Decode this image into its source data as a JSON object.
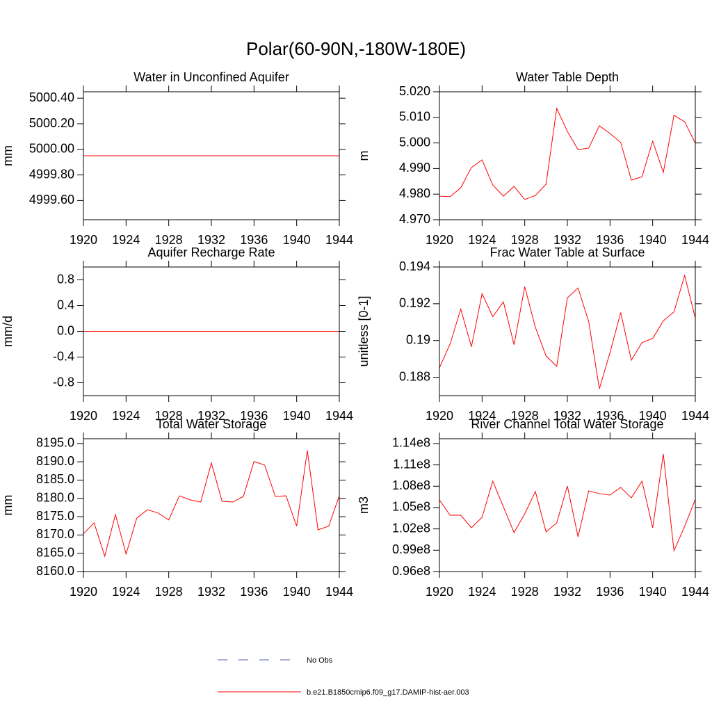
{
  "title": "Polar(60-90N,-180W-180E)",
  "legend": [
    {
      "label": "No Obs",
      "color": "#5060b0",
      "dashed": true
    },
    {
      "label": "b.e21.B1850cmip6.f09_g17.DAMIP-hist-aer.003",
      "color": "#ff0000",
      "dashed": false
    }
  ],
  "chart_data": [
    {
      "type": "line",
      "title": "Water in Unconfined Aquifer",
      "ylabel": "mm",
      "color": "#ff0000",
      "x": [
        1920,
        1921,
        1922,
        1923,
        1924,
        1925,
        1926,
        1927,
        1928,
        1929,
        1930,
        1931,
        1932,
        1933,
        1934,
        1935,
        1936,
        1937,
        1938,
        1939,
        1940,
        1941,
        1942,
        1943,
        1944
      ],
      "values": [
        4999.95,
        4999.95,
        4999.95,
        4999.95,
        4999.95,
        4999.95,
        4999.95,
        4999.95,
        4999.95,
        4999.95,
        4999.95,
        4999.95,
        4999.95,
        4999.95,
        4999.95,
        4999.95,
        4999.95,
        4999.95,
        4999.95,
        4999.95,
        4999.95,
        4999.95,
        4999.95,
        4999.95,
        4999.95
      ],
      "xlim": [
        1920,
        1944
      ],
      "xticks": [
        1920,
        1924,
        1928,
        1932,
        1936,
        1940,
        1944
      ],
      "ylim": [
        4999.45,
        5000.45
      ],
      "yticks": [
        {
          "value": 4999.6,
          "label": "4999.60"
        },
        {
          "value": 4999.8,
          "label": "4999.80"
        },
        {
          "value": 5000.0,
          "label": "5000.00"
        },
        {
          "value": 5000.2,
          "label": "5000.20"
        },
        {
          "value": 5000.4,
          "label": "5000.40"
        }
      ]
    },
    {
      "type": "line",
      "title": "Water Table Depth",
      "ylabel": "m",
      "color": "#ff0000",
      "x": [
        1920,
        1921,
        1922,
        1923,
        1924,
        1925,
        1926,
        1927,
        1928,
        1929,
        1930,
        1931,
        1932,
        1933,
        1934,
        1935,
        1936,
        1937,
        1938,
        1939,
        1940,
        1941,
        1942,
        1943,
        1944
      ],
      "values": [
        4.9792,
        4.979,
        4.9825,
        4.9904,
        4.9934,
        4.9836,
        4.9792,
        4.983,
        4.9779,
        4.9795,
        4.9839,
        5.0135,
        5.0045,
        4.9974,
        4.998,
        5.0067,
        5.0037,
        5.0002,
        4.9855,
        4.9868,
        5.0007,
        4.9885,
        5.0108,
        5.0083,
        4.9999
      ],
      "xlim": [
        1920,
        1944
      ],
      "xticks": [
        1920,
        1924,
        1928,
        1932,
        1936,
        1940,
        1944
      ],
      "ylim": [
        4.97,
        5.02
      ],
      "yticks": [
        {
          "value": 4.97,
          "label": "4.970"
        },
        {
          "value": 4.98,
          "label": "4.980"
        },
        {
          "value": 4.99,
          "label": "4.990"
        },
        {
          "value": 5.0,
          "label": "5.000"
        },
        {
          "value": 5.01,
          "label": "5.010"
        },
        {
          "value": 5.02,
          "label": "5.020"
        }
      ]
    },
    {
      "type": "line",
      "title": "Aquifer Recharge Rate",
      "ylabel": "mm/d",
      "color": "#ff0000",
      "x": [
        1920,
        1921,
        1922,
        1923,
        1924,
        1925,
        1926,
        1927,
        1928,
        1929,
        1930,
        1931,
        1932,
        1933,
        1934,
        1935,
        1936,
        1937,
        1938,
        1939,
        1940,
        1941,
        1942,
        1943,
        1944
      ],
      "values": [
        0,
        0,
        0,
        0,
        0,
        0,
        0,
        0,
        0,
        0,
        0,
        0,
        0,
        0,
        0,
        0,
        0,
        0,
        0,
        0,
        0,
        0,
        0,
        0,
        0
      ],
      "xlim": [
        1920,
        1944
      ],
      "xticks": [
        1920,
        1924,
        1928,
        1932,
        1936,
        1940,
        1944
      ],
      "ylim": [
        -1,
        1
      ],
      "yticks": [
        -0.8,
        -0.4,
        {
          "value": 0,
          "label": "0.0"
        },
        0.4,
        0.8
      ]
    },
    {
      "type": "line",
      "title": "Frac Water Table at Surface",
      "ylabel": "unitless [0-1]",
      "color": "#ff0000",
      "x": [
        1920,
        1921,
        1922,
        1923,
        1924,
        1925,
        1926,
        1927,
        1928,
        1929,
        1930,
        1931,
        1932,
        1933,
        1934,
        1935,
        1936,
        1937,
        1938,
        1939,
        1940,
        1941,
        1942,
        1943,
        1944
      ],
      "values": [
        0.18851,
        0.18981,
        0.19171,
        0.18966,
        0.19255,
        0.1913,
        0.1921,
        0.18977,
        0.19293,
        0.19072,
        0.18916,
        0.18859,
        0.19232,
        0.19286,
        0.19103,
        0.18737,
        0.18935,
        0.19152,
        0.18893,
        0.18989,
        0.19011,
        0.19107,
        0.19156,
        0.19354,
        0.19122
      ],
      "xlim": [
        1920,
        1944
      ],
      "xticks": [
        1920,
        1924,
        1928,
        1932,
        1936,
        1940,
        1944
      ],
      "ylim": [
        0.187,
        0.194
      ],
      "yticks": [
        0.188,
        0.19,
        0.192,
        0.194
      ]
    },
    {
      "type": "line",
      "title": "Total Water Storage",
      "ylabel": "mm",
      "color": "#ff0000",
      "x": [
        1920,
        1921,
        1922,
        1923,
        1924,
        1925,
        1926,
        1927,
        1928,
        1929,
        1930,
        1931,
        1932,
        1933,
        1934,
        1935,
        1936,
        1937,
        1938,
        1939,
        1940,
        1941,
        1942,
        1943,
        1944
      ],
      "values": [
        8170.3,
        8173.3,
        8164.2,
        8175.6,
        8164.8,
        8174.6,
        8176.9,
        8176.0,
        8174.1,
        8180.7,
        8179.6,
        8179.0,
        8189.7,
        8179.2,
        8179.0,
        8180.5,
        8190.1,
        8189.1,
        8180.5,
        8180.7,
        8172.4,
        8193.1,
        8171.4,
        8172.4,
        8180.7
      ],
      "xlim": [
        1920,
        1944
      ],
      "xticks": [
        1920,
        1924,
        1928,
        1932,
        1936,
        1940,
        1944
      ],
      "ylim": [
        8160,
        8196.3
      ],
      "yticks": [
        {
          "value": 8160,
          "label": "8160.0"
        },
        {
          "value": 8165,
          "label": "8165.0"
        },
        {
          "value": 8170,
          "label": "8170.0"
        },
        {
          "value": 8175,
          "label": "8175.0"
        },
        {
          "value": 8180,
          "label": "8180.0"
        },
        {
          "value": 8185,
          "label": "8185.0"
        },
        {
          "value": 8190,
          "label": "8190.0"
        },
        {
          "value": 8195,
          "label": "8195.0"
        }
      ]
    },
    {
      "type": "line",
      "title": "River Channel Total Water Storage",
      "ylabel": "m3",
      "color": "#ff0000",
      "x": [
        1920,
        1921,
        1922,
        1923,
        1924,
        1925,
        1926,
        1927,
        1928,
        1929,
        1930,
        1931,
        1932,
        1933,
        1934,
        1935,
        1936,
        1937,
        1938,
        1939,
        1940,
        1941,
        1942,
        1943,
        1944
      ],
      "values": [
        106080000,
        103920000,
        103920000,
        102160000,
        103630000,
        108720000,
        105100000,
        101480000,
        104120000,
        107250000,
        101580000,
        102850000,
        108030000,
        100890000,
        107350000,
        106960000,
        106760000,
        107840000,
        106370000,
        108720000,
        102160000,
        112530000,
        98930000,
        102360000,
        106170000
      ],
      "xlim": [
        1920,
        1944
      ],
      "xticks": [
        1920,
        1924,
        1928,
        1932,
        1936,
        1940,
        1944
      ],
      "ylim": [
        96000000,
        114680000
      ],
      "yticks": [
        {
          "value": 96000000,
          "label": "0.96e8"
        },
        {
          "value": 99000000,
          "label": "0.99e8"
        },
        {
          "value": 102000000,
          "label": "1.02e8"
        },
        {
          "value": 105000000,
          "label": "1.05e8"
        },
        {
          "value": 108000000,
          "label": "1.08e8"
        },
        {
          "value": 111000000,
          "label": "1.11e8"
        },
        {
          "value": 114000000,
          "label": "1.14e8"
        }
      ]
    }
  ]
}
